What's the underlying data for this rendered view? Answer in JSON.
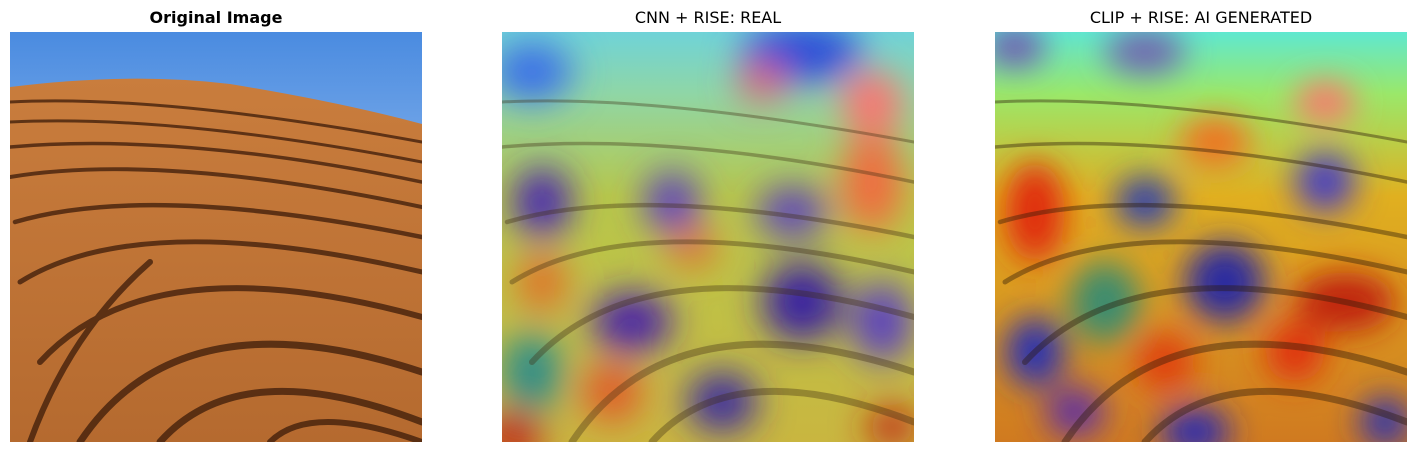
{
  "panels": [
    {
      "title": "Original Image"
    },
    {
      "title": "CNN + RISE: REAL"
    },
    {
      "title": "CLIP + RISE: AI GENERATED"
    }
  ],
  "colors": {
    "sky_top": "#4f8fe0",
    "sky_bottom": "#cfe4fb",
    "sand_light": "#d08a4c",
    "sand_dark": "#3a1a08"
  }
}
